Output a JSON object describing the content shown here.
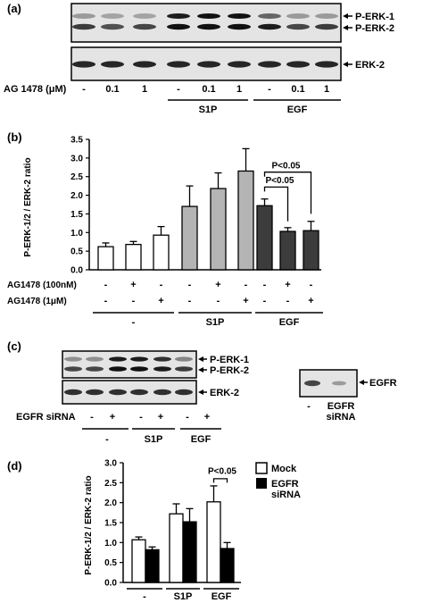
{
  "panel_a": {
    "label": "(a)",
    "blot_labels": {
      "perk1": "P-ERK-1",
      "perk2": "P-ERK-2",
      "erk2": "ERK-2"
    },
    "row_label": "AG 1478 (μM)",
    "doses": [
      "-",
      "0.1",
      "1",
      "-",
      "0.1",
      "1",
      "-",
      "0.1",
      "1"
    ],
    "group_labels": [
      "S1P",
      "EGF"
    ]
  },
  "panel_b": {
    "label": "(b)",
    "chart_data": {
      "type": "bar",
      "ylabel": "P-ERK-1/2 / ERK-2 ratio",
      "ylim": [
        0,
        3.5
      ],
      "yticks": [
        "0.0",
        "0.5",
        "1.0",
        "1.5",
        "2.0",
        "2.5",
        "3.0",
        "3.5"
      ],
      "values": [
        0.62,
        0.68,
        0.93,
        1.7,
        2.18,
        2.65,
        1.72,
        1.03,
        1.05
      ],
      "errors": [
        0.1,
        0.08,
        0.23,
        0.55,
        0.42,
        0.6,
        0.18,
        0.1,
        0.25
      ],
      "fills": [
        "#ffffff",
        "#ffffff",
        "#ffffff",
        "#b4b4b4",
        "#b4b4b4",
        "#b4b4b4",
        "#3c3c3c",
        "#3c3c3c",
        "#3c3c3c"
      ],
      "row1_label": "AG1478 (100nM)",
      "row1": [
        "-",
        "+",
        "-",
        "-",
        "+",
        "-",
        "-",
        "+",
        "-"
      ],
      "row2_label": "AG1478 (1μM)",
      "row2": [
        "-",
        "-",
        "+",
        "-",
        "-",
        "+",
        "-",
        "-",
        "+"
      ],
      "groups": [
        "-",
        "S1P",
        "EGF"
      ],
      "annotations": [
        "P<0.05",
        "P<0.05"
      ]
    }
  },
  "panel_c": {
    "label": "(c)",
    "blot_labels": {
      "perk1": "P-ERK-1",
      "perk2": "P-ERK-2",
      "erk2": "ERK-2"
    },
    "row_label": "EGFR siRNA",
    "signs": [
      "-",
      "+",
      "-",
      "+",
      "-",
      "+"
    ],
    "groups": [
      "-",
      "S1P",
      "EGF"
    ],
    "egfr_label": "EGFR",
    "egfr_lanes": [
      "-",
      "EGFR",
      "siRNA"
    ]
  },
  "panel_d": {
    "label": "(d)",
    "chart_data": {
      "type": "bar",
      "ylabel": "P-ERK-1/2 / ERK-2 ratio",
      "ylim": [
        0,
        3.0
      ],
      "yticks": [
        "0.0",
        "0.5",
        "1.0",
        "1.5",
        "2.0",
        "2.5",
        "3.0"
      ],
      "categories": [
        "-",
        "S1P",
        "EGF"
      ],
      "series": [
        {
          "name": "Mock",
          "values": [
            1.07,
            1.72,
            2.02
          ],
          "errors": [
            0.07,
            0.25,
            0.4
          ],
          "color": "#ffffff"
        },
        {
          "name": "EGFR siRNA",
          "values": [
            0.82,
            1.52,
            0.85
          ],
          "errors": [
            0.07,
            0.33,
            0.15
          ],
          "color": "#000000"
        }
      ],
      "legend": [
        "Mock",
        "EGFR",
        "siRNA"
      ],
      "annotation": "P<0.05"
    }
  }
}
